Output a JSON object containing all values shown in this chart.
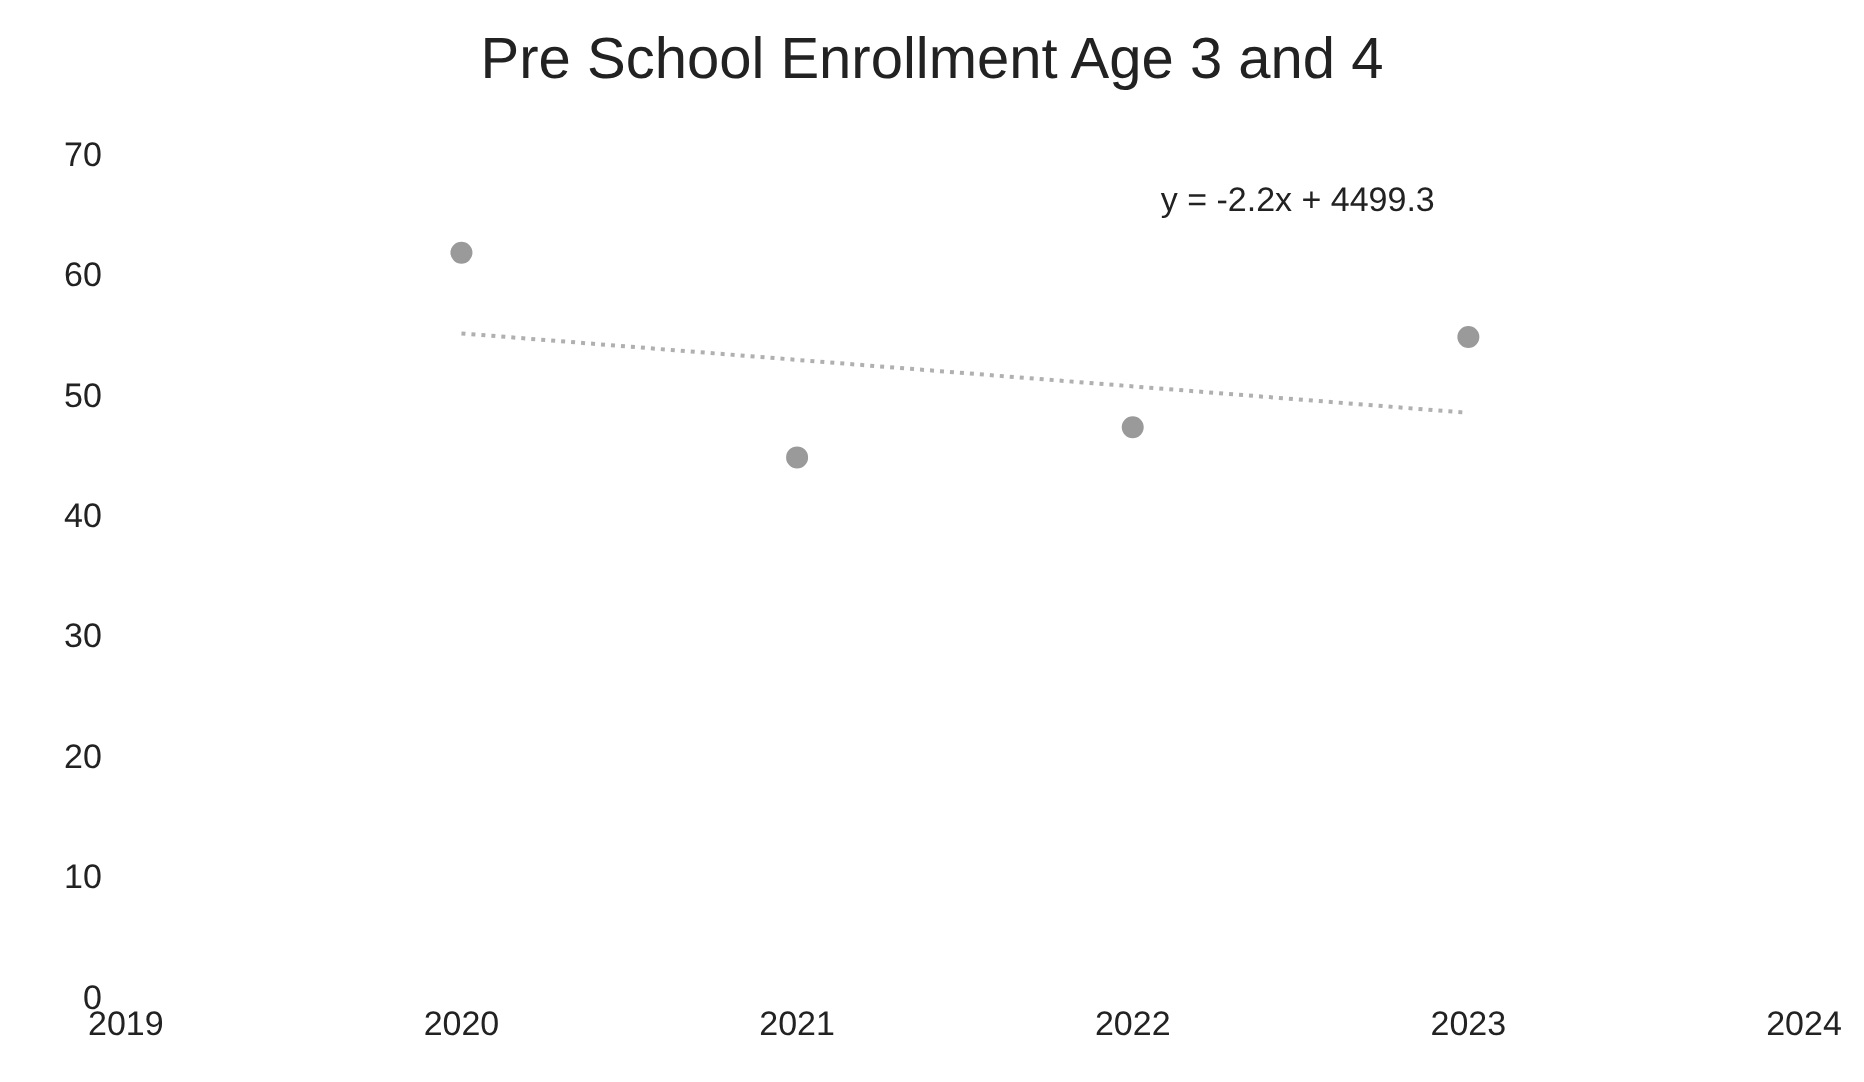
{
  "chart_data": {
    "type": "scatter",
    "title": "Pre School Enrollment Age 3 and 4",
    "x": [
      2020,
      2021,
      2022,
      2023
    ],
    "series": [
      {
        "color": "#9a9a9a",
        "values": [
          62,
          45,
          47.5,
          55
        ],
        "marker": "circle"
      },
      {
        "type": "line",
        "x": [
          2020,
          2023
        ],
        "values": [
          55.3,
          48.7
        ],
        "color": "#b0b0b0",
        "line_style": "dotted",
        "marker": "none"
      }
    ],
    "xlim": [
      2019,
      2024
    ],
    "xticks": [
      2019,
      2020,
      2021,
      2022,
      2023,
      2024
    ],
    "ylim": [
      0,
      70
    ],
    "yticks": [
      0,
      10,
      20,
      30,
      40,
      50,
      60,
      70
    ],
    "grid": false,
    "legend": false,
    "annotations": [
      "y = -2.2x + 4499.3"
    ]
  }
}
